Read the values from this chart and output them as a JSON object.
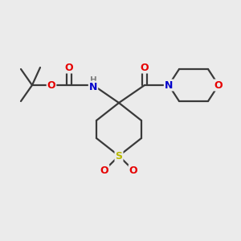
{
  "background_color": "#ebebeb",
  "bond_color": "#3a3a3a",
  "atom_colors": {
    "O": "#e60000",
    "N": "#0000cc",
    "S": "#b8b800",
    "H": "#808080",
    "C": "#3a3a3a"
  },
  "line_width": 1.6,
  "fig_size": [
    3.0,
    3.0
  ],
  "dpi": 100
}
